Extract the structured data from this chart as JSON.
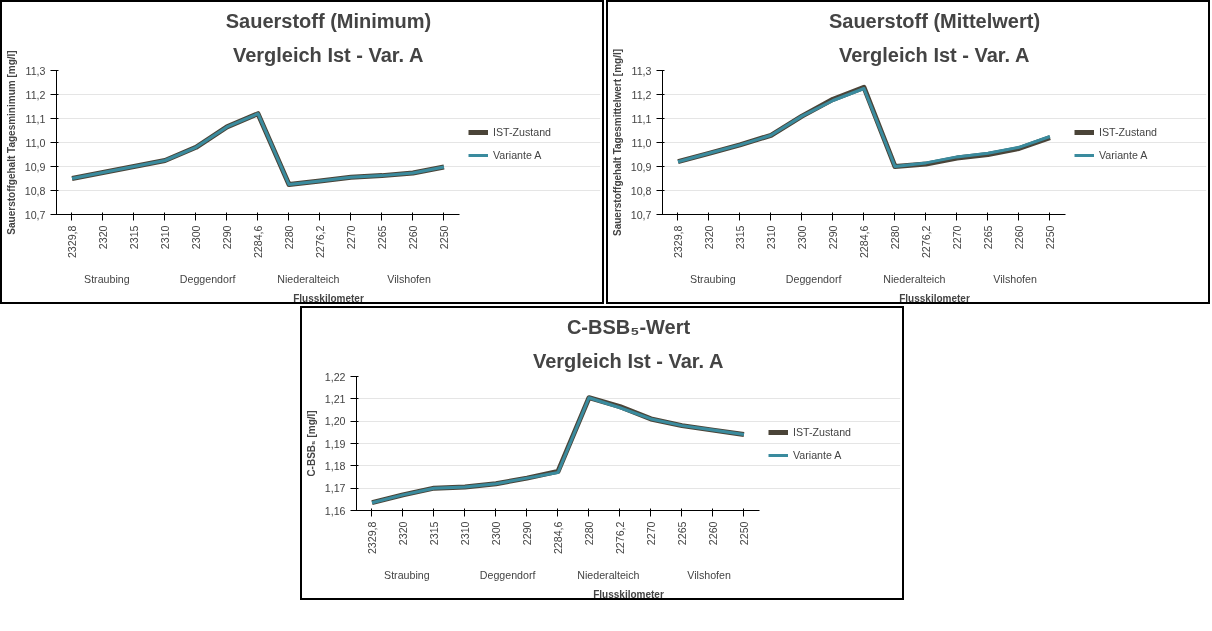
{
  "chart_data": [
    {
      "type": "line",
      "title": "Sauerstoff (Minimum)",
      "subtitle": "Vergleich Ist - Var. A",
      "xlabel": "Flusskilometer",
      "ylabel": "Sauerstoffgehalt Tagesminimum [mg/l]",
      "categories": [
        "2329,8",
        "2320",
        "2315",
        "2310",
        "2300",
        "2290",
        "2284,6",
        "2280",
        "2276,2",
        "2270",
        "2265",
        "2260",
        "2250"
      ],
      "series": [
        {
          "name": "IST-Zustand",
          "color": "#4a4438",
          "values": [
            10.85,
            10.875,
            10.9,
            10.925,
            10.98,
            11.065,
            11.12,
            10.825,
            10.84,
            10.855,
            10.862,
            10.873,
            10.898
          ]
        },
        {
          "name": "Variante A",
          "color": "#3a8b9e",
          "values": [
            10.85,
            10.875,
            10.9,
            10.925,
            10.98,
            11.065,
            11.12,
            10.825,
            10.84,
            10.855,
            10.862,
            10.873,
            10.898
          ]
        }
      ],
      "annotations": [
        "Straubing",
        "Deggendorf",
        "Niederalteich",
        "Vilshofen"
      ],
      "ylim": [
        10.7,
        11.3
      ],
      "yticks": [
        {
          "value": 10.7,
          "label": "10,7"
        },
        {
          "value": 10.8,
          "label": "10,8"
        },
        {
          "value": 10.9,
          "label": "10,9"
        },
        {
          "value": 11.0,
          "label": "11,0"
        },
        {
          "value": 11.1,
          "label": "11,1"
        },
        {
          "value": 11.2,
          "label": "11,2"
        },
        {
          "value": 11.3,
          "label": "11,3"
        }
      ],
      "grid": "y",
      "legend": "right",
      "marker": "none",
      "line_style": "solid"
    },
    {
      "type": "line",
      "title": "Sauerstoff (Mittelwert)",
      "subtitle": "Vergleich Ist - Var. A",
      "xlabel": "Flusskilometer",
      "ylabel": "Sauerstoffgehalt Tagesmittelwert [mg/l]",
      "categories": [
        "2329,8",
        "2320",
        "2315",
        "2310",
        "2300",
        "2290",
        "2284,6",
        "2280",
        "2276,2",
        "2270",
        "2265",
        "2260",
        "2250"
      ],
      "series": [
        {
          "name": "IST-Zustand",
          "color": "#4a4438",
          "values": [
            10.92,
            10.955,
            10.99,
            11.03,
            11.11,
            11.18,
            11.23,
            10.9,
            10.91,
            10.935,
            10.95,
            10.975,
            11.02
          ]
        },
        {
          "name": "Variante A",
          "color": "#3a8b9e",
          "values": [
            10.92,
            10.955,
            10.99,
            11.03,
            11.11,
            11.175,
            11.225,
            10.9,
            10.915,
            10.94,
            10.955,
            10.98,
            11.025
          ]
        }
      ],
      "annotations": [
        "Straubing",
        "Deggendorf",
        "Niederalteich",
        "Vilshofen"
      ],
      "ylim": [
        10.7,
        11.3
      ],
      "yticks": [
        {
          "value": 10.7,
          "label": "10,7"
        },
        {
          "value": 10.8,
          "label": "10,8"
        },
        {
          "value": 10.9,
          "label": "10,9"
        },
        {
          "value": 11.0,
          "label": "11,0"
        },
        {
          "value": 11.1,
          "label": "11,1"
        },
        {
          "value": 11.2,
          "label": "11,2"
        },
        {
          "value": 11.3,
          "label": "11,3"
        }
      ],
      "grid": "y",
      "legend": "right",
      "marker": "none",
      "line_style": "solid"
    },
    {
      "type": "line",
      "title": "C-BSB₅-Wert",
      "subtitle": "Vergleich Ist - Var. A",
      "xlabel": "Flusskilometer",
      "ylabel": "C-BSB₅ [mg/l]",
      "categories": [
        "2329,8",
        "2320",
        "2315",
        "2310",
        "2300",
        "2290",
        "2284,6",
        "2280",
        "2276,2",
        "2270",
        "2265",
        "2260",
        "2250"
      ],
      "series": [
        {
          "name": "IST-Zustand",
          "color": "#4a4438",
          "values": [
            1.1635,
            1.167,
            1.17,
            1.1705,
            1.172,
            1.1745,
            1.1775,
            1.2105,
            1.2065,
            1.201,
            1.198,
            1.196,
            1.194
          ]
        },
        {
          "name": "Variante A",
          "color": "#3a8b9e",
          "values": [
            1.1635,
            1.167,
            1.17,
            1.1705,
            1.172,
            1.1745,
            1.177,
            1.2105,
            1.206,
            1.201,
            1.198,
            1.196,
            1.194
          ]
        }
      ],
      "annotations": [
        "Straubing",
        "Deggendorf",
        "Niederalteich",
        "Vilshofen"
      ],
      "ylim": [
        1.16,
        1.22
      ],
      "yticks": [
        {
          "value": 1.16,
          "label": "1,16"
        },
        {
          "value": 1.17,
          "label": "1,17"
        },
        {
          "value": 1.18,
          "label": "1,18"
        },
        {
          "value": 1.19,
          "label": "1,19"
        },
        {
          "value": 1.2,
          "label": "1,20"
        },
        {
          "value": 1.21,
          "label": "1,21"
        },
        {
          "value": 1.22,
          "label": "1,22"
        }
      ],
      "grid": "y",
      "legend": "right",
      "marker": "none",
      "line_style": "solid"
    }
  ]
}
